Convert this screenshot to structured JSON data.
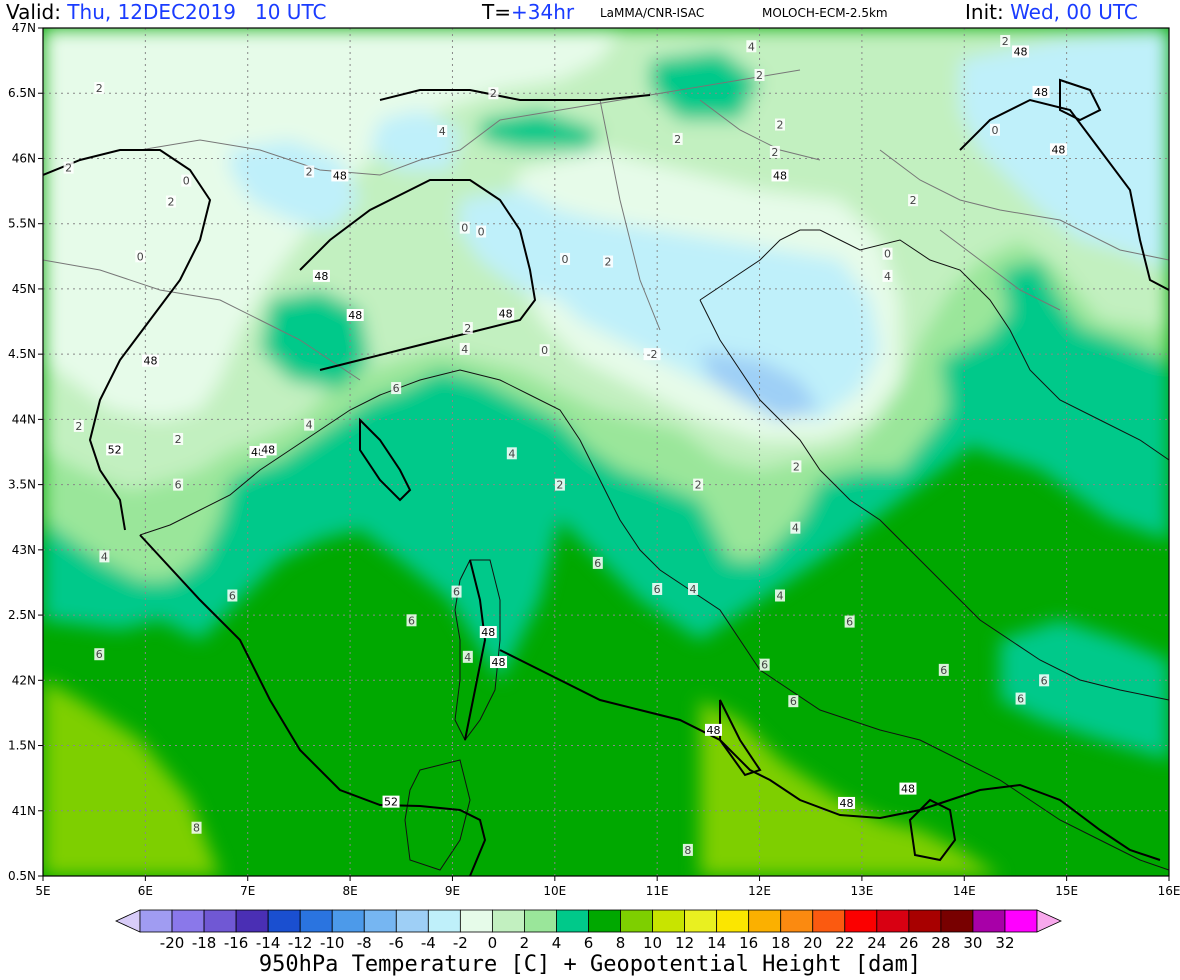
{
  "header": {
    "valid_label": "Valid:",
    "valid_value": "Thu, 12DEC2019   10 UTC",
    "lead_label": "T=",
    "lead_value": "+34hr",
    "org": "LaMMA/CNR-ISAC",
    "model": "MOLOCH-ECM-2.5km",
    "init_label": "Init:",
    "init_value": "Wed, 00 UTC"
  },
  "axes": {
    "lat_labels": [
      "47N",
      "6.5N",
      "46N",
      "5.5N",
      "45N",
      "4.5N",
      "44N",
      "3.5N",
      "43N",
      "2.5N",
      "42N",
      "1.5N",
      "41N",
      "0.5N"
    ],
    "lon_labels": [
      "5E",
      "6E",
      "7E",
      "8E",
      "9E",
      "10E",
      "11E",
      "12E",
      "13E",
      "14E",
      "15E",
      "16E"
    ]
  },
  "colorbar": {
    "ticks": [
      "-20",
      "-18",
      "-16",
      "-14",
      "-12",
      "-10",
      "-8",
      "-6",
      "-4",
      "-2",
      "0",
      "2",
      "4",
      "6",
      "8",
      "10",
      "12",
      "14",
      "16",
      "18",
      "20",
      "22",
      "24",
      "26",
      "28",
      "30",
      "32"
    ],
    "colors": [
      "#a09cf2",
      "#8a78ea",
      "#7058d4",
      "#4a2fb4",
      "#1a4fd0",
      "#2a74e0",
      "#4c9aea",
      "#76b6f2",
      "#9ecff6",
      "#bff0fa",
      "#e6fbe9",
      "#c2f0c0",
      "#9ae69a",
      "#00c98a",
      "#00a800",
      "#7ecf00",
      "#c8e400",
      "#e9f020",
      "#fbe600",
      "#fbb000",
      "#fb8a10",
      "#fb5a10",
      "#fb0000",
      "#d80012",
      "#a80000",
      "#780000",
      "#a800a8",
      "#ff00ff"
    ],
    "under_color": "#d8ccf8",
    "over_color": "#f8a8ec"
  },
  "contour_labels": {
    "temperature": [
      {
        "text": "2",
        "lon": 5.55,
        "lat": 46.54
      },
      {
        "text": "2",
        "lon": 5.25,
        "lat": 45.93
      },
      {
        "text": "0",
        "lon": 6.4,
        "lat": 45.83
      },
      {
        "text": "2",
        "lon": 6.25,
        "lat": 45.67
      },
      {
        "text": "0",
        "lon": 5.95,
        "lat": 45.25
      },
      {
        "text": "2",
        "lon": 7.6,
        "lat": 45.9
      },
      {
        "text": "2",
        "lon": 9.4,
        "lat": 46.5
      },
      {
        "text": "4",
        "lon": 8.9,
        "lat": 46.21
      },
      {
        "text": "4",
        "lon": 11.92,
        "lat": 46.86
      },
      {
        "text": "2",
        "lon": 11.2,
        "lat": 46.15
      },
      {
        "text": "2",
        "lon": 12.15,
        "lat": 46.05
      },
      {
        "text": "2",
        "lon": 12.0,
        "lat": 46.64
      },
      {
        "text": "2",
        "lon": 12.2,
        "lat": 46.26
      },
      {
        "text": "2",
        "lon": 14.4,
        "lat": 46.9
      },
      {
        "text": "0",
        "lon": 14.3,
        "lat": 46.22
      },
      {
        "text": "2",
        "lon": 13.5,
        "lat": 45.68
      },
      {
        "text": "0",
        "lon": 9.12,
        "lat": 45.47
      },
      {
        "text": "0",
        "lon": 9.28,
        "lat": 45.44
      },
      {
        "text": "0",
        "lon": 10.1,
        "lat": 45.23
      },
      {
        "text": "2",
        "lon": 10.52,
        "lat": 45.21
      },
      {
        "text": "0",
        "lon": 9.9,
        "lat": 44.53
      },
      {
        "text": "-2",
        "lon": 10.95,
        "lat": 44.5
      },
      {
        "text": "4",
        "lon": 13.25,
        "lat": 45.1
      },
      {
        "text": "0",
        "lon": 13.25,
        "lat": 45.27
      },
      {
        "text": "2",
        "lon": 9.15,
        "lat": 44.7
      },
      {
        "text": "4",
        "lon": 9.12,
        "lat": 44.54
      },
      {
        "text": "6",
        "lon": 8.45,
        "lat": 44.24
      },
      {
        "text": "2",
        "lon": 5.35,
        "lat": 43.95
      },
      {
        "text": "2",
        "lon": 6.32,
        "lat": 43.85
      },
      {
        "text": "4",
        "lon": 7.6,
        "lat": 43.96
      },
      {
        "text": "4",
        "lon": 9.58,
        "lat": 43.74
      },
      {
        "text": "2",
        "lon": 10.05,
        "lat": 43.5
      },
      {
        "text": "2",
        "lon": 11.4,
        "lat": 43.5
      },
      {
        "text": "2",
        "lon": 12.36,
        "lat": 43.64
      },
      {
        "text": "6",
        "lon": 6.32,
        "lat": 43.5
      },
      {
        "text": "4",
        "lon": 5.6,
        "lat": 42.95
      },
      {
        "text": "6",
        "lon": 6.85,
        "lat": 42.65
      },
      {
        "text": "6",
        "lon": 9.04,
        "lat": 42.68
      },
      {
        "text": "6",
        "lon": 8.6,
        "lat": 42.46
      },
      {
        "text": "4",
        "lon": 9.15,
        "lat": 42.18
      },
      {
        "text": "6",
        "lon": 5.55,
        "lat": 42.2
      },
      {
        "text": "6",
        "lon": 10.42,
        "lat": 42.9
      },
      {
        "text": "6",
        "lon": 11.0,
        "lat": 42.7
      },
      {
        "text": "4",
        "lon": 11.35,
        "lat": 42.7
      },
      {
        "text": "4",
        "lon": 12.35,
        "lat": 43.17
      },
      {
        "text": "4",
        "lon": 12.2,
        "lat": 42.65
      },
      {
        "text": "6",
        "lon": 12.88,
        "lat": 42.45
      },
      {
        "text": "6",
        "lon": 12.05,
        "lat": 42.12
      },
      {
        "text": "6",
        "lon": 12.33,
        "lat": 41.84
      },
      {
        "text": "6",
        "lon": 13.8,
        "lat": 42.08
      },
      {
        "text": "6",
        "lon": 14.55,
        "lat": 41.86
      },
      {
        "text": "6",
        "lon": 14.78,
        "lat": 42.0
      },
      {
        "text": "8",
        "lon": 6.5,
        "lat": 40.87
      },
      {
        "text": "8",
        "lon": 11.3,
        "lat": 40.7
      }
    ],
    "height": [
      {
        "text": "48",
        "lon": 14.55,
        "lat": 46.82
      },
      {
        "text": "48",
        "lon": 14.75,
        "lat": 46.51
      },
      {
        "text": "48",
        "lon": 14.92,
        "lat": 46.07
      },
      {
        "text": "48",
        "lon": 12.2,
        "lat": 45.87
      },
      {
        "text": "48",
        "lon": 7.9,
        "lat": 45.87
      },
      {
        "text": "48",
        "lon": 7.72,
        "lat": 45.1
      },
      {
        "text": "48",
        "lon": 8.05,
        "lat": 44.8
      },
      {
        "text": "48",
        "lon": 9.52,
        "lat": 44.81
      },
      {
        "text": "48",
        "lon": 6.05,
        "lat": 44.45
      },
      {
        "text": "48",
        "lon": 7.1,
        "lat": 43.75
      },
      {
        "text": "48",
        "lon": 7.2,
        "lat": 43.77
      },
      {
        "text": "52",
        "lon": 5.7,
        "lat": 43.77
      },
      {
        "text": "48",
        "lon": 9.35,
        "lat": 42.37
      },
      {
        "text": "48",
        "lon": 9.45,
        "lat": 42.14
      },
      {
        "text": "48",
        "lon": 11.55,
        "lat": 41.62
      },
      {
        "text": "52",
        "lon": 8.4,
        "lat": 41.07
      },
      {
        "text": "48",
        "lon": 12.85,
        "lat": 41.06
      },
      {
        "text": "48",
        "lon": 13.45,
        "lat": 41.17
      }
    ]
  }
}
